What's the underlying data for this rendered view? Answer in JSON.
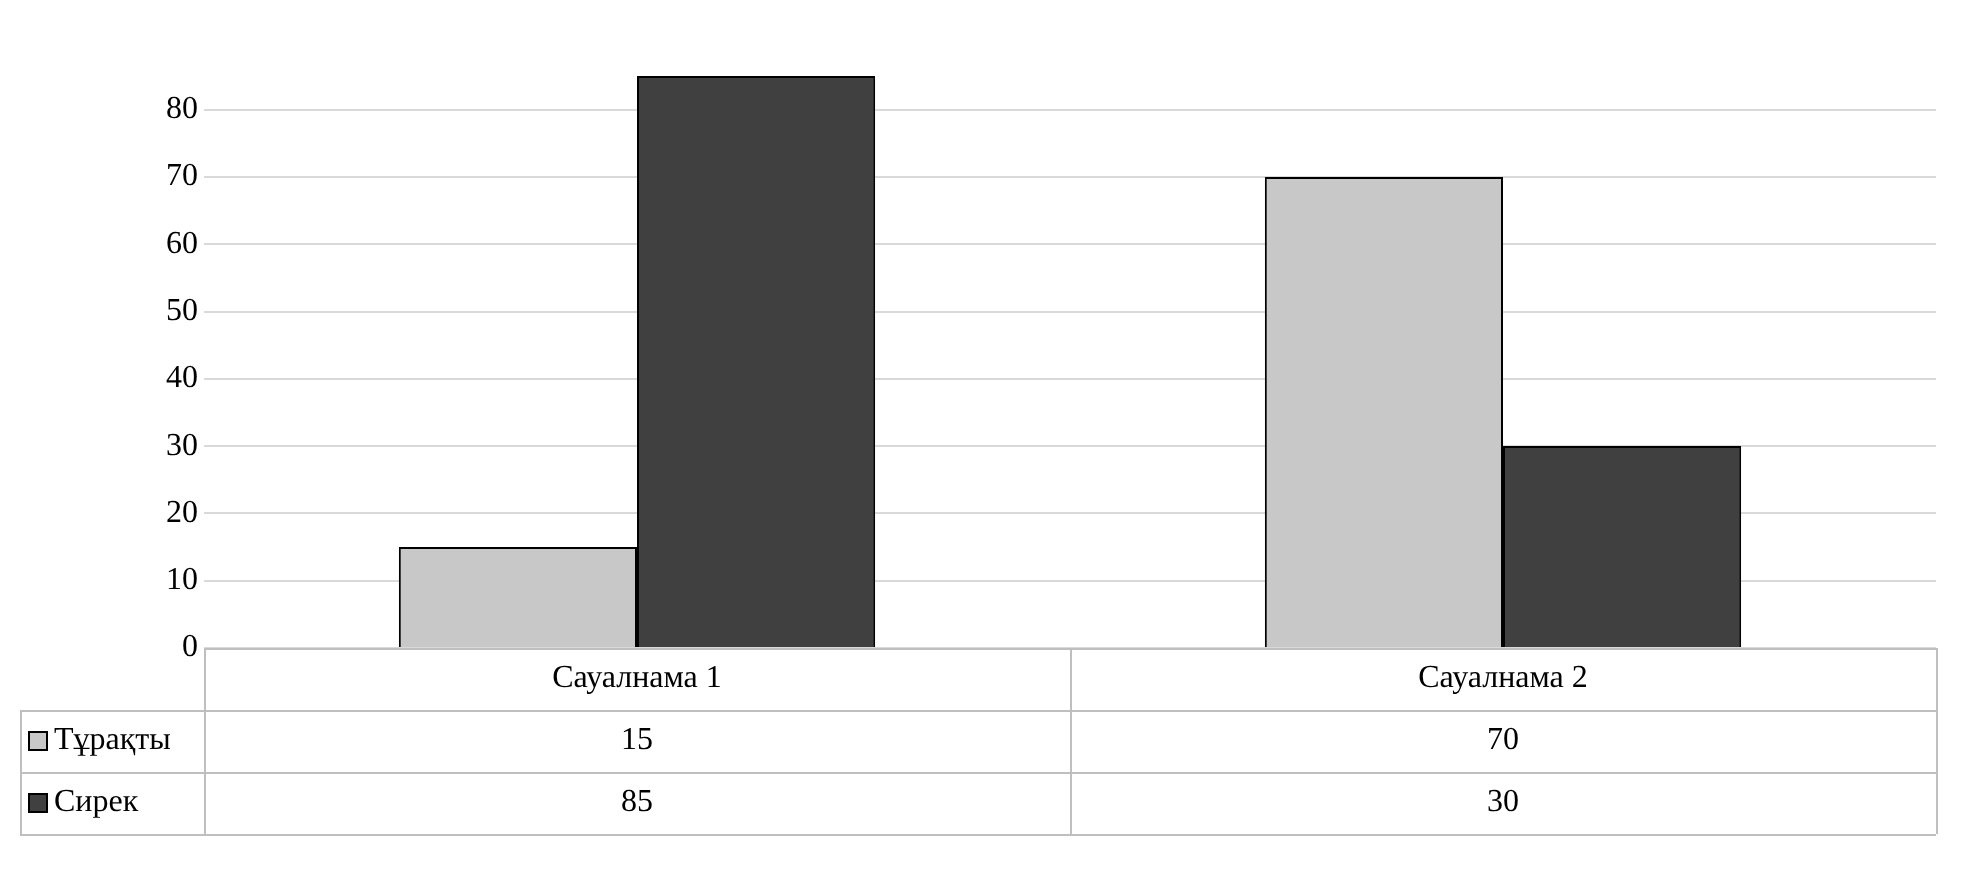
{
  "chart_data": {
    "type": "bar",
    "categories": [
      "Сауалнама 1",
      "Сауалнама 2"
    ],
    "series": [
      {
        "name": "Тұрақты",
        "color": "#c8c8c8",
        "values": [
          15,
          70
        ]
      },
      {
        "name": "Сирек",
        "color": "#404040",
        "values": [
          85,
          30
        ]
      }
    ],
    "ylim": [
      0,
      85
    ],
    "yticks": [
      0,
      10,
      20,
      30,
      40,
      50,
      60,
      70,
      80
    ],
    "grid": "y",
    "legend": "bottom",
    "data_labels": true
  }
}
